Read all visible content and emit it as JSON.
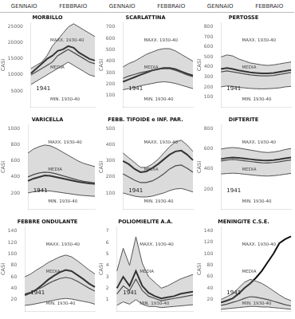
{
  "header": [
    "GENNAIO",
    "FEBBRAIO"
  ],
  "chart_data": [
    {
      "type": "line",
      "title": "MORBILLO",
      "ylabel": "CASI",
      "categories": [
        null,
        null,
        null,
        null,
        null,
        null,
        null,
        null,
        null,
        null,
        null,
        null,
        null
      ],
      "series": [
        {
          "color": "#555555",
          "values": [
            12000,
            13000,
            14000,
            16000,
            19000,
            21000,
            23000,
            25000,
            26000,
            25000,
            24000,
            23000,
            22000
          ]
        },
        {
          "color": "#555555",
          "values": [
            7000,
            8000,
            9000,
            10000,
            11000,
            12000,
            13000,
            14000,
            13000,
            12000,
            11000,
            10000,
            9500
          ]
        },
        {
          "color": "#333333",
          "values": [
            10000,
            11000,
            12000,
            13000,
            14000,
            16000,
            17000,
            18000,
            17000,
            16000,
            15000,
            14000,
            13500
          ]
        },
        {
          "color": "#111111",
          "values": [
            10500,
            12000,
            13500,
            15000,
            16000,
            17500,
            18000,
            19000,
            18500,
            17000,
            16000,
            15000,
            14500
          ]
        }
      ],
      "annotations": [
        "1941",
        "MAXX. 1930-40",
        "MEDIA",
        "MIN. 1930-40"
      ],
      "ylim": [
        0,
        26250
      ],
      "yticks": [
        {
          "value": 0,
          "label": null
        },
        5000,
        10000,
        15000,
        20000,
        25000
      ],
      "grid": false,
      "tick_labels": "y"
    },
    {
      "type": "line",
      "title": "SCARLATTINA",
      "ylabel": "CASI",
      "categories": [
        null,
        null,
        null,
        null,
        null,
        null,
        null,
        null,
        null,
        null,
        null,
        null,
        null
      ],
      "series": [
        {
          "color": "#555555",
          "values": [
            350,
            380,
            400,
            430,
            460,
            480,
            500,
            510,
            510,
            490,
            460,
            430,
            400
          ]
        },
        {
          "color": "#555555",
          "values": [
            150,
            160,
            170,
            185,
            195,
            205,
            215,
            220,
            215,
            205,
            190,
            175,
            160
          ]
        },
        {
          "color": "#333333",
          "values": [
            250,
            270,
            285,
            300,
            310,
            320,
            330,
            335,
            335,
            320,
            300,
            280,
            265
          ]
        },
        {
          "color": "#111111",
          "values": [
            220,
            240,
            260,
            280,
            300,
            320,
            330,
            340,
            340,
            330,
            310,
            290,
            275
          ]
        }
      ],
      "annotations": [
        "1941",
        "MAXX. 1930-40",
        "MEDIA",
        "MIN. 1930-40"
      ],
      "ylim": [
        0,
        735
      ],
      "yticks": [
        {
          "value": 0,
          "label": null
        },
        100,
        200,
        300,
        400,
        500,
        600,
        700
      ],
      "grid": false,
      "tick_labels": "y"
    },
    {
      "type": "line",
      "title": "PERTOSSE",
      "ylabel": "CASI",
      "categories": [
        null,
        null,
        null,
        null,
        null,
        null,
        null,
        null,
        null,
        null,
        null,
        null,
        null
      ],
      "series": [
        {
          "color": "#555555",
          "values": [
            500,
            520,
            510,
            480,
            460,
            440,
            430,
            420,
            415,
            420,
            430,
            440,
            450
          ]
        },
        {
          "color": "#555555",
          "values": [
            200,
            210,
            205,
            195,
            190,
            185,
            182,
            180,
            182,
            185,
            190,
            200,
            205
          ]
        },
        {
          "color": "#333333",
          "values": [
            350,
            360,
            350,
            340,
            330,
            320,
            315,
            310,
            310,
            315,
            325,
            335,
            345
          ]
        },
        {
          "color": "#111111",
          "values": [
            380,
            390,
            380,
            365,
            355,
            345,
            340,
            335,
            335,
            340,
            350,
            360,
            370
          ]
        }
      ],
      "annotations": [
        "1941",
        "MAXX. 1930-40",
        "MEDIA",
        "MIN. 1930-40"
      ],
      "ylim": [
        0,
        840
      ],
      "yticks": [
        {
          "value": 0,
          "label": null
        },
        100,
        200,
        300,
        400,
        500,
        600,
        700,
        800
      ],
      "grid": false,
      "tick_labels": "y"
    },
    {
      "type": "line",
      "title": "VARICELLA",
      "ylabel": "CASI",
      "categories": [
        null,
        null,
        null,
        null,
        null,
        null,
        null,
        null,
        null,
        null,
        null,
        null,
        null
      ],
      "series": [
        {
          "color": "#555555",
          "values": [
            700,
            750,
            780,
            800,
            790,
            760,
            720,
            680,
            640,
            600,
            570,
            550,
            530
          ]
        },
        {
          "color": "#555555",
          "values": [
            200,
            215,
            225,
            230,
            225,
            215,
            205,
            195,
            185,
            175,
            168,
            163,
            158
          ]
        },
        {
          "color": "#333333",
          "values": [
            400,
            430,
            450,
            460,
            455,
            440,
            420,
            400,
            380,
            360,
            345,
            335,
            325
          ]
        },
        {
          "color": "#111111",
          "values": [
            350,
            380,
            400,
            420,
            415,
            400,
            385,
            370,
            355,
            340,
            330,
            320,
            315
          ]
        }
      ],
      "annotations": [
        "1941",
        "MAXX. 1930-40",
        "MEDIA",
        "MIN. 1930-40"
      ],
      "ylim": [
        0,
        1050
      ],
      "yticks": [
        {
          "value": 0,
          "label": null
        },
        200,
        400,
        600,
        800,
        1000
      ],
      "grid": false,
      "tick_labels": "y"
    },
    {
      "type": "line",
      "title": "FEBB. TIFOIDE e INF. PAR.",
      "ylabel": "CASI",
      "categories": [
        null,
        null,
        null,
        null,
        null,
        null,
        null,
        null,
        null,
        null,
        null,
        null,
        null
      ],
      "series": [
        {
          "color": "#555555",
          "values": [
            350,
            320,
            290,
            260,
            260,
            280,
            310,
            350,
            390,
            420,
            430,
            400,
            360
          ]
        },
        {
          "color": "#555555",
          "values": [
            100,
            90,
            80,
            75,
            75,
            80,
            90,
            100,
            115,
            125,
            128,
            118,
            106
          ]
        },
        {
          "color": "#333333",
          "values": [
            220,
            200,
            180,
            165,
            165,
            175,
            195,
            220,
            250,
            270,
            275,
            255,
            230
          ]
        },
        {
          "color": "#111111",
          "values": [
            300,
            280,
            250,
            230,
            235,
            255,
            280,
            310,
            340,
            360,
            365,
            340,
            305
          ]
        }
      ],
      "annotations": [
        "1941",
        "MAXX. 1930-40",
        "MEDIA",
        "MIN. 1930-40"
      ],
      "ylim": [
        0,
        525
      ],
      "yticks": [
        {
          "value": 0,
          "label": null
        },
        100,
        200,
        300,
        400,
        500
      ],
      "grid": false,
      "tick_labels": "y"
    },
    {
      "type": "line",
      "title": "DIFTERITE",
      "ylabel": "CASI",
      "categories": [
        null,
        null,
        null,
        null,
        null,
        null,
        null,
        null,
        null,
        null,
        null,
        null,
        null
      ],
      "series": [
        {
          "color": "#555555",
          "values": [
            600,
            610,
            615,
            610,
            600,
            590,
            580,
            570,
            565,
            570,
            580,
            595,
            605
          ]
        },
        {
          "color": "#555555",
          "values": [
            350,
            355,
            358,
            355,
            348,
            342,
            336,
            331,
            329,
            333,
            339,
            348,
            356
          ]
        },
        {
          "color": "#333333",
          "values": [
            480,
            490,
            495,
            490,
            482,
            475,
            468,
            462,
            460,
            465,
            472,
            482,
            490
          ]
        },
        {
          "color": "#111111",
          "values": [
            500,
            510,
            515,
            512,
            505,
            498,
            492,
            487,
            485,
            490,
            497,
            507,
            515
          ]
        }
      ],
      "annotations": [
        "1941",
        "MAXX. 1930-40",
        "MEDIA",
        "MIN. 1930-40"
      ],
      "ylim": [
        0,
        840
      ],
      "yticks": [
        {
          "value": 0,
          "label": null
        },
        200,
        400,
        600,
        800
      ],
      "grid": false,
      "tick_labels": "y"
    },
    {
      "type": "line",
      "title": "FEBBRE ONDULANTE",
      "ylabel": "CASI",
      "categories": [
        null,
        null,
        null,
        null,
        null,
        null,
        null,
        null,
        null,
        null,
        null,
        null,
        null
      ],
      "series": [
        {
          "color": "#555555",
          "values": [
            60,
            65,
            72,
            78,
            85,
            90,
            95,
            98,
            95,
            88,
            80,
            72,
            65
          ]
        },
        {
          "color": "#555555",
          "values": [
            10,
            11,
            13,
            15,
            17,
            19,
            21,
            22,
            21,
            19,
            17,
            15,
            12
          ]
        },
        {
          "color": "#333333",
          "values": [
            30,
            33,
            37,
            42,
            48,
            53,
            57,
            59,
            57,
            52,
            46,
            40,
            35
          ]
        },
        {
          "color": "#111111",
          "values": [
            28,
            32,
            38,
            46,
            55,
            62,
            68,
            72,
            70,
            63,
            56,
            48,
            42
          ]
        }
      ],
      "annotations": [
        "1941",
        "MAXX. 1930-40",
        "MEDIA",
        "MIN. 1930-40"
      ],
      "ylim": [
        0,
        147
      ],
      "yticks": [
        {
          "value": 0,
          "label": null
        },
        20,
        40,
        60,
        80,
        100,
        120,
        140
      ],
      "grid": false,
      "tick_labels": "y"
    },
    {
      "type": "line",
      "title": "POLIOMIELITE A.A.",
      "ylabel": "CASI",
      "categories": [
        null,
        null,
        null,
        null,
        null,
        null,
        null,
        null,
        null,
        null,
        null,
        null,
        null
      ],
      "series": [
        {
          "color": "#555555",
          "values": [
            3.5,
            5.5,
            4.0,
            6.5,
            4.2,
            3.0,
            2.5,
            2.0,
            2.2,
            2.5,
            2.8,
            3.0,
            3.2
          ]
        },
        {
          "color": "#555555",
          "values": [
            0.5,
            0.8,
            0.6,
            1.0,
            0.6,
            0.4,
            0.4,
            0.3,
            0.35,
            0.4,
            0.45,
            0.5,
            0.55
          ]
        },
        {
          "color": "#333333",
          "values": [
            1.5,
            2.2,
            1.8,
            2.8,
            1.8,
            1.3,
            1.1,
            0.9,
            1.0,
            1.1,
            1.2,
            1.3,
            1.4
          ]
        },
        {
          "color": "#111111",
          "values": [
            2.0,
            3.0,
            2.2,
            3.5,
            2.2,
            1.6,
            1.3,
            1.1,
            1.2,
            1.3,
            1.5,
            1.6,
            1.7
          ]
        }
      ],
      "annotations": [
        "1941",
        "MAXX. 1930-40",
        "MEDIA",
        "MIN. 1930-40"
      ],
      "ylim": [
        0,
        7.35
      ],
      "yticks": [
        {
          "value": 0,
          "label": null
        },
        1,
        2,
        3,
        4,
        5,
        6,
        7
      ],
      "grid": false,
      "tick_labels": "y"
    },
    {
      "type": "line",
      "title": "MENINGITE C.S.E.",
      "ylabel": "CASI",
      "categories": [
        null,
        null,
        null,
        null,
        null,
        null,
        null,
        null,
        null,
        null,
        null,
        null,
        null
      ],
      "series": [
        {
          "color": "#555555",
          "values": [
            20,
            25,
            30,
            40,
            50,
            55,
            52,
            48,
            42,
            35,
            28,
            22,
            18
          ]
        },
        {
          "color": "#555555",
          "values": [
            3,
            4,
            5,
            6,
            7,
            8,
            8,
            7,
            7,
            6,
            5,
            4,
            3
          ]
        },
        {
          "color": "#333333",
          "values": [
            10,
            12,
            15,
            18,
            22,
            25,
            24,
            22,
            20,
            17,
            14,
            11,
            9
          ]
        },
        {
          "color": "#111111",
          "values": [
            15,
            18,
            22,
            30,
            40,
            48,
            58,
            70,
            85,
            100,
            118,
            125,
            130
          ]
        }
      ],
      "annotations": [
        "1941",
        "MAXX. 1930-40",
        "MEDIA",
        "MIN. 1930-40"
      ],
      "ylim": [
        0,
        146
      ],
      "yticks": [
        {
          "value": 0,
          "label": null
        },
        20,
        40,
        60,
        80,
        100,
        120,
        140
      ],
      "grid": false,
      "tick_labels": "y"
    }
  ]
}
